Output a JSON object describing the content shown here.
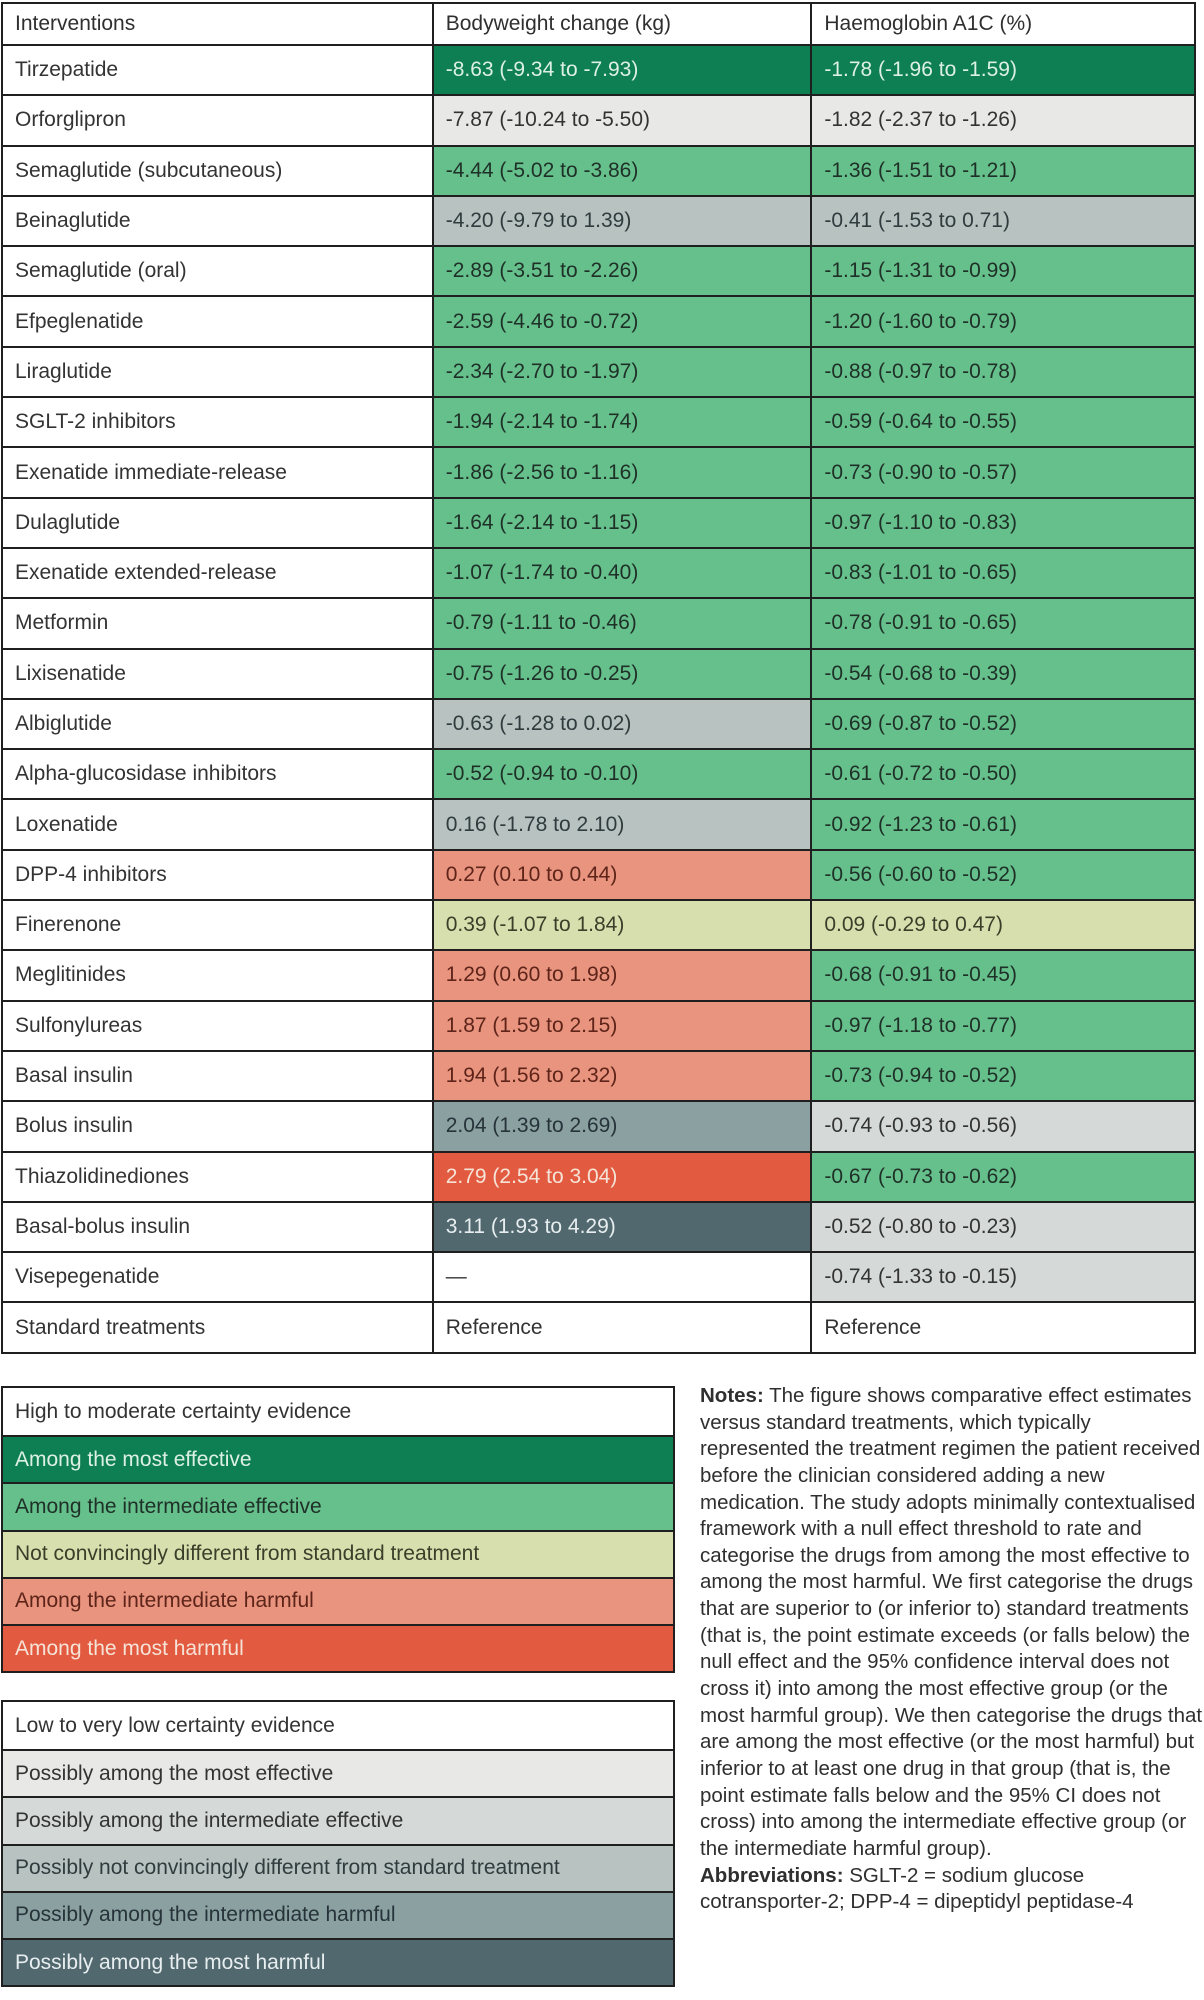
{
  "chart_data": {
    "type": "table",
    "columns": [
      "Interventions",
      "Bodyweight change (kg)",
      "Haemoglobin A1C (%)"
    ],
    "rows": [
      {
        "intervention": "Tirzepatide",
        "bodyweight": "-8.63 (-9.34 to -7.93)",
        "bodyweight_category": "most_effective",
        "a1c": "-1.78 (-1.96 to -1.59)",
        "a1c_category": "most_effective"
      },
      {
        "intervention": "Orforglipron",
        "bodyweight": "-7.87 (-10.24 to -5.50)",
        "bodyweight_category": "possibly_most_effective",
        "a1c": "-1.82 (-2.37 to -1.26)",
        "a1c_category": "possibly_most_effective"
      },
      {
        "intervention": "Semaglutide (subcutaneous)",
        "bodyweight": "-4.44 (-5.02 to -3.86)",
        "bodyweight_category": "intermediate_effective",
        "a1c": "-1.36 (-1.51 to -1.21)",
        "a1c_category": "intermediate_effective"
      },
      {
        "intervention": "Beinaglutide",
        "bodyweight": "-4.20 (-9.79 to 1.39)",
        "bodyweight_category": "possibly_not_different",
        "a1c": "-0.41 (-1.53 to 0.71)",
        "a1c_category": "possibly_not_different"
      },
      {
        "intervention": "Semaglutide (oral)",
        "bodyweight": "-2.89 (-3.51 to -2.26)",
        "bodyweight_category": "intermediate_effective",
        "a1c": "-1.15 (-1.31 to -0.99)",
        "a1c_category": "intermediate_effective"
      },
      {
        "intervention": "Efpeglenatide",
        "bodyweight": "-2.59 (-4.46 to -0.72)",
        "bodyweight_category": "intermediate_effective",
        "a1c": "-1.20 (-1.60 to -0.79)",
        "a1c_category": "intermediate_effective"
      },
      {
        "intervention": "Liraglutide",
        "bodyweight": "-2.34 (-2.70 to -1.97)",
        "bodyweight_category": "intermediate_effective",
        "a1c": "-0.88 (-0.97 to -0.78)",
        "a1c_category": "intermediate_effective"
      },
      {
        "intervention": "SGLT-2 inhibitors",
        "bodyweight": "-1.94 (-2.14 to -1.74)",
        "bodyweight_category": "intermediate_effective",
        "a1c": "-0.59 (-0.64 to -0.55)",
        "a1c_category": "intermediate_effective"
      },
      {
        "intervention": "Exenatide immediate-release",
        "bodyweight": "-1.86 (-2.56 to -1.16)",
        "bodyweight_category": "intermediate_effective",
        "a1c": "-0.73 (-0.90 to -0.57)",
        "a1c_category": "intermediate_effective"
      },
      {
        "intervention": "Dulaglutide",
        "bodyweight": "-1.64 (-2.14 to -1.15)",
        "bodyweight_category": "intermediate_effective",
        "a1c": "-0.97 (-1.10 to -0.83)",
        "a1c_category": "intermediate_effective"
      },
      {
        "intervention": "Exenatide extended-release",
        "bodyweight": "-1.07 (-1.74 to -0.40)",
        "bodyweight_category": "intermediate_effective",
        "a1c": "-0.83 (-1.01 to -0.65)",
        "a1c_category": "intermediate_effective"
      },
      {
        "intervention": "Metformin",
        "bodyweight": "-0.79 (-1.11 to -0.46)",
        "bodyweight_category": "intermediate_effective",
        "a1c": "-0.78 (-0.91 to -0.65)",
        "a1c_category": "intermediate_effective"
      },
      {
        "intervention": "Lixisenatide",
        "bodyweight": "-0.75 (-1.26 to -0.25)",
        "bodyweight_category": "intermediate_effective",
        "a1c": "-0.54 (-0.68 to -0.39)",
        "a1c_category": "intermediate_effective"
      },
      {
        "intervention": "Albiglutide",
        "bodyweight": "-0.63 (-1.28 to 0.02)",
        "bodyweight_category": "possibly_not_different",
        "a1c": "-0.69 (-0.87 to -0.52)",
        "a1c_category": "intermediate_effective"
      },
      {
        "intervention": "Alpha-glucosidase inhibitors",
        "bodyweight": "-0.52 (-0.94 to -0.10)",
        "bodyweight_category": "intermediate_effective",
        "a1c": "-0.61 (-0.72 to -0.50)",
        "a1c_category": "intermediate_effective"
      },
      {
        "intervention": "Loxenatide",
        "bodyweight": "0.16 (-1.78 to 2.10)",
        "bodyweight_category": "possibly_not_different",
        "a1c": "-0.92 (-1.23 to -0.61)",
        "a1c_category": "intermediate_effective"
      },
      {
        "intervention": "DPP-4 inhibitors",
        "bodyweight": "0.27 (0.10 to 0.44)",
        "bodyweight_category": "intermediate_harmful",
        "a1c": "-0.56 (-0.60 to -0.52)",
        "a1c_category": "intermediate_effective"
      },
      {
        "intervention": "Finerenone",
        "bodyweight": "0.39 (-1.07 to 1.84)",
        "bodyweight_category": "not_different",
        "a1c": "0.09 (-0.29 to 0.47)",
        "a1c_category": "not_different"
      },
      {
        "intervention": "Meglitinides",
        "bodyweight": "1.29 (0.60 to 1.98)",
        "bodyweight_category": "intermediate_harmful",
        "a1c": "-0.68 (-0.91 to -0.45)",
        "a1c_category": "intermediate_effective"
      },
      {
        "intervention": "Sulfonylureas",
        "bodyweight": "1.87 (1.59 to 2.15)",
        "bodyweight_category": "intermediate_harmful",
        "a1c": "-0.97 (-1.18 to -0.77)",
        "a1c_category": "intermediate_effective"
      },
      {
        "intervention": "Basal insulin",
        "bodyweight": "1.94 (1.56 to 2.32)",
        "bodyweight_category": "intermediate_harmful",
        "a1c": "-0.73 (-0.94 to -0.52)",
        "a1c_category": "intermediate_effective"
      },
      {
        "intervention": "Bolus insulin",
        "bodyweight": "2.04 (1.39 to 2.69)",
        "bodyweight_category": "possibly_intermediate_harmful",
        "a1c": "-0.74 (-0.93 to -0.56)",
        "a1c_category": "possibly_intermediate_effective"
      },
      {
        "intervention": "Thiazolidinediones",
        "bodyweight": "2.79 (2.54 to 3.04)",
        "bodyweight_category": "most_harmful",
        "a1c": "-0.67 (-0.73 to -0.62)",
        "a1c_category": "intermediate_effective"
      },
      {
        "intervention": "Basal-bolus insulin",
        "bodyweight": "3.11 (1.93 to 4.29)",
        "bodyweight_category": "possibly_most_harmful",
        "a1c": "-0.52 (-0.80 to -0.23)",
        "a1c_category": "possibly_intermediate_effective"
      },
      {
        "intervention": "Visepegenatide",
        "bodyweight": "—",
        "bodyweight_category": "reference",
        "a1c": "-0.74 (-1.33 to -0.15)",
        "a1c_category": "possibly_intermediate_effective"
      },
      {
        "intervention": "Standard treatments",
        "bodyweight": "Reference",
        "bodyweight_category": "reference",
        "a1c": "Reference",
        "a1c_category": "reference"
      }
    ]
  },
  "legend_high": {
    "title": "High to moderate certainty evidence",
    "items": [
      {
        "label": "Among the most effective",
        "category": "most_effective"
      },
      {
        "label": "Among the intermediate effective",
        "category": "intermediate_effective"
      },
      {
        "label": "Not convincingly different from standard treatment",
        "category": "not_different"
      },
      {
        "label": "Among the intermediate harmful",
        "category": "intermediate_harmful"
      },
      {
        "label": "Among the most harmful",
        "category": "most_harmful"
      }
    ]
  },
  "legend_low": {
    "title": "Low to very low certainty evidence",
    "items": [
      {
        "label": "Possibly among the most effective",
        "category": "possibly_most_effective"
      },
      {
        "label": "Possibly among the intermediate effective",
        "category": "possibly_intermediate_effective"
      },
      {
        "label": "Possibly not convincingly different from standard treatment",
        "category": "possibly_not_different"
      },
      {
        "label": "Possibly among the intermediate harmful",
        "category": "possibly_intermediate_harmful"
      },
      {
        "label": "Possibly among the most harmful",
        "category": "possibly_most_harmful"
      }
    ]
  },
  "notes": {
    "label": "Notes:",
    "text": " The figure shows comparative effect estimates versus standard treatments, which typically represented the treatment regimen the patient received before the clinician considered adding a new medication. The study adopts minimally contextualised framework with a null effect threshold to rate and categorise the drugs from among the most effective to among the most harmful. We first categorise the drugs that are superior to (or inferior to) standard treatments (that is, the point estimate exceeds (or falls below) the null effect and the 95% confidence interval does not cross it) into among the most effective group (or the most harmful group). We then categorise the drugs that are among the most effective (or the most harmful) but inferior to at least one drug in that group (that is, the point estimate falls below and the 95% CI does not cross) into among the intermediate effective group (or the intermediate harmful group).",
    "abbreviations_label": "Abbreviations:",
    "abbreviations_text": " SGLT-2 = sodium glucose cotransporter-2; DPP-4 = dipeptidyl peptidase-4"
  },
  "colors": {
    "most_effective": {
      "bg": "#0e7e53",
      "fg": "#ddf1e3"
    },
    "intermediate_effective": {
      "bg": "#66c08c",
      "fg": "#1e3027"
    },
    "not_different": {
      "bg": "#d8dfae",
      "fg": "#3a3f2a"
    },
    "intermediate_harmful": {
      "bg": "#e8947e",
      "fg": "#5e2419"
    },
    "most_harmful": {
      "bg": "#e25b40",
      "fg": "#f6e3d7"
    },
    "possibly_most_effective": {
      "bg": "#e8e9e7",
      "fg": "#333333"
    },
    "possibly_intermediate_effective": {
      "bg": "#d5dad8",
      "fg": "#333333"
    },
    "possibly_not_different": {
      "bg": "#b8c2c1",
      "fg": "#2f3b3d"
    },
    "possibly_intermediate_harmful": {
      "bg": "#8aa0a1",
      "fg": "#27333a"
    },
    "possibly_most_harmful": {
      "bg": "#50686e",
      "fg": "#e8eef0"
    },
    "reference": {
      "bg": "#ffffff",
      "fg": "#333333"
    },
    "border": "#1f1f1f"
  }
}
